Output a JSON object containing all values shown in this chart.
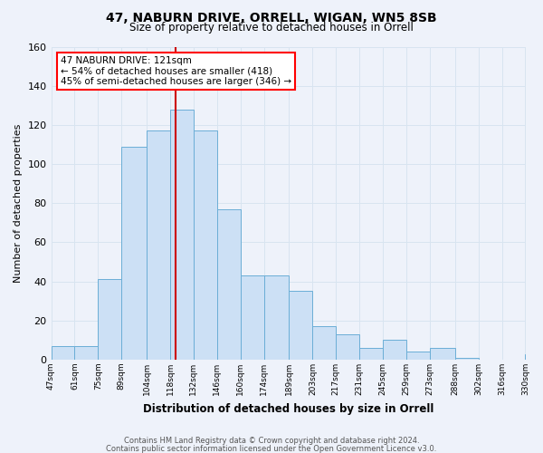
{
  "title1": "47, NABURN DRIVE, ORRELL, WIGAN, WN5 8SB",
  "title2": "Size of property relative to detached houses in Orrell",
  "xlabel": "Distribution of detached houses by size in Orrell",
  "ylabel": "Number of detached properties",
  "bar_edges": [
    47,
    61,
    75,
    89,
    104,
    118,
    132,
    146,
    160,
    174,
    189,
    203,
    217,
    231,
    245,
    259,
    273,
    288,
    302,
    316,
    330
  ],
  "bar_heights": [
    7,
    7,
    41,
    109,
    117,
    128,
    117,
    77,
    43,
    43,
    35,
    17,
    13,
    6,
    10,
    4,
    6,
    1,
    0,
    0,
    3
  ],
  "bar_face_color": "#cce0f5",
  "bar_edge_color": "#6baed6",
  "ref_line_x": 121,
  "ref_line_color": "#cc0000",
  "annotation_line1": "47 NABURN DRIVE: 121sqm",
  "annotation_line2": "← 54% of detached houses are smaller (418)",
  "annotation_line3": "45% of semi-detached houses are larger (346) →",
  "annotation_box_color": "white",
  "annotation_box_edge": "red",
  "ylim": [
    0,
    160
  ],
  "yticks": [
    0,
    20,
    40,
    60,
    80,
    100,
    120,
    140,
    160
  ],
  "grid_color": "#d8e4f0",
  "bg_color": "#eef2fa",
  "footer1": "Contains HM Land Registry data © Crown copyright and database right 2024.",
  "footer2": "Contains public sector information licensed under the Open Government Licence v3.0.",
  "tick_labels": [
    "47sqm",
    "61sqm",
    "75sqm",
    "89sqm",
    "104sqm",
    "118sqm",
    "132sqm",
    "146sqm",
    "160sqm",
    "174sqm",
    "189sqm",
    "203sqm",
    "217sqm",
    "231sqm",
    "245sqm",
    "259sqm",
    "273sqm",
    "288sqm",
    "302sqm",
    "316sqm",
    "330sqm"
  ]
}
